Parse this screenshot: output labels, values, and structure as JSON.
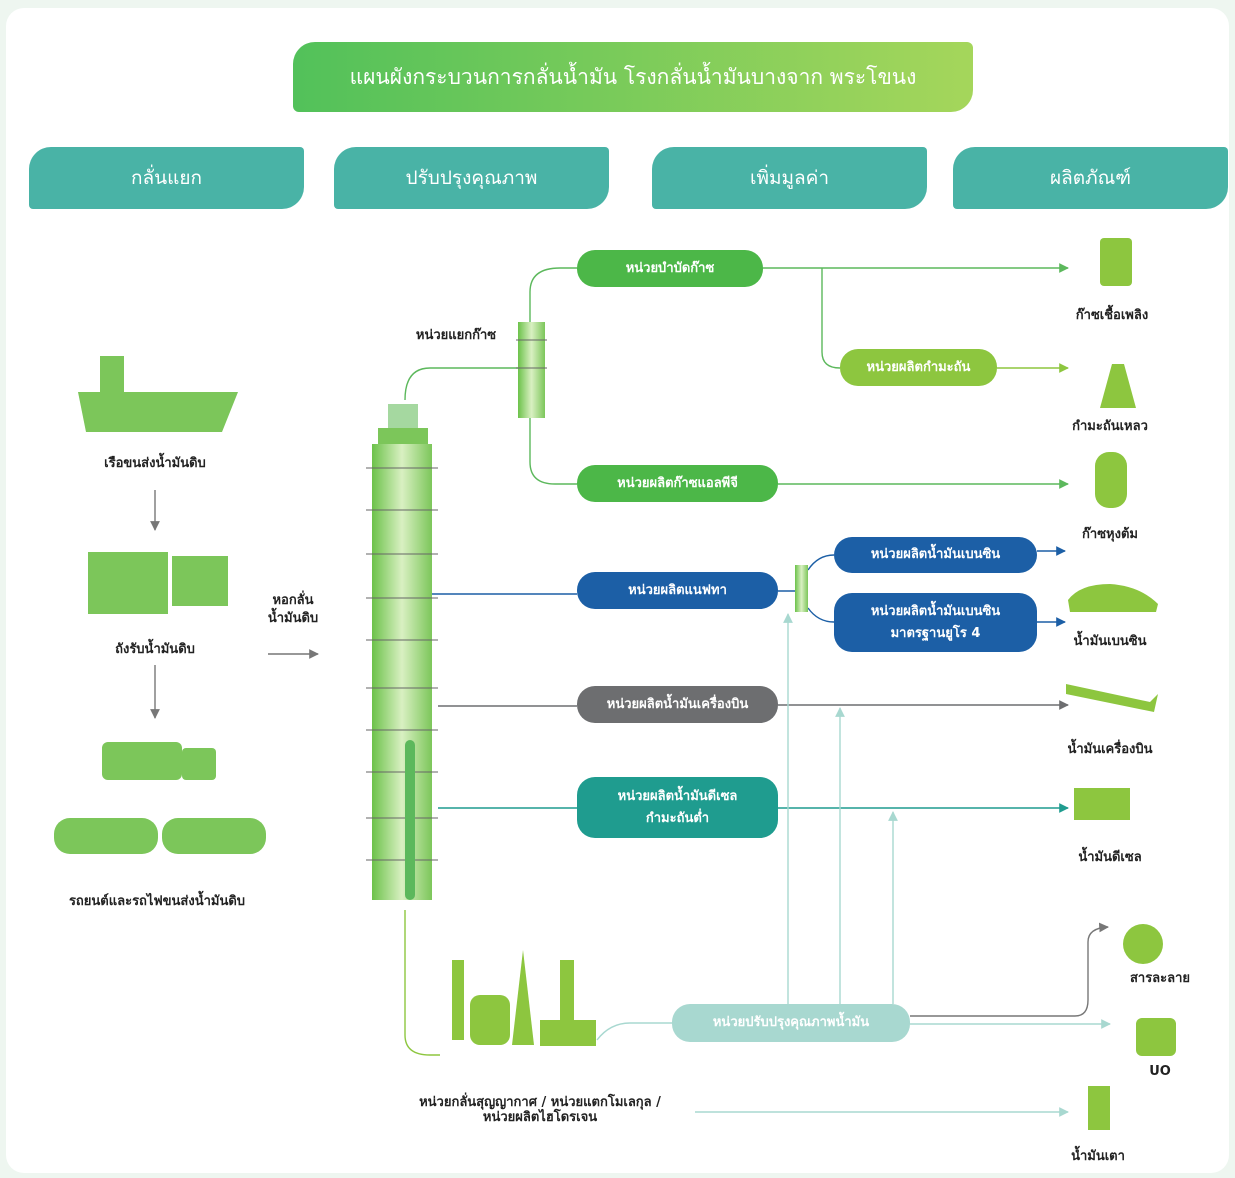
{
  "title": "แผนผังกระบวนการกลั่นน้ำมัน โรงกลั่นน้ำมันบางจาก พระโขนง",
  "stages": [
    "กลั่นแยก",
    "ปรับปรุงคุณภาพ",
    "เพิ่มมูลค่า",
    "ผลิตภัณฑ์"
  ],
  "sources": [
    "เรือขนส่งน้ำมันดิบ",
    "ถังรับน้ำมันดิบ",
    "รถยนต์และรถไฟขนส่งน้ำมันดิบ"
  ],
  "column": [
    "หอกลั่น",
    "น้ำมันดิบ"
  ],
  "gas_separator": "หน่วยแยกก๊าซ",
  "units": [
    {
      "lines": [
        "หน่วยบำบัดก๊าซ"
      ]
    },
    {
      "lines": [
        "หน่วยผลิตกำมะถัน"
      ]
    },
    {
      "lines": [
        "หน่วยผลิตก๊าซแอลพีจี"
      ]
    },
    {
      "lines": [
        "หน่วยผลิตแนฟทา"
      ]
    },
    {
      "lines": [
        "หน่วยผลิตน้ำมันเบนซิน"
      ]
    },
    {
      "lines": [
        "หน่วยผลิตน้ำมันเบนซิน",
        "มาตรฐานยูโร 4"
      ]
    },
    {
      "lines": [
        "หน่วยผลิตน้ำมันเครื่องบิน"
      ]
    },
    {
      "lines": [
        "หน่วยผลิตน้ำมันดีเซล",
        "กำมะถันต่ำ"
      ]
    },
    {
      "lines": [
        "หน่วยปรับปรุงคุณภาพน้ำมัน"
      ]
    }
  ],
  "vacuum_unit": [
    "หน่วยกลั่นสุญญากาศ / หน่วยแตกโมเลกุล /",
    "หน่วยผลิตไฮโดรเจน"
  ],
  "products": [
    "ก๊าซเชื้อเพลิง",
    "กำมะถันเหลว",
    "ก๊าซหุงต้ม",
    "น้ำมันเบนซิน",
    "น้ำมันเครื่องบิน",
    "น้ำมันดีเซล",
    "สารละลาย",
    "UO",
    "น้ำมันเตา"
  ]
}
